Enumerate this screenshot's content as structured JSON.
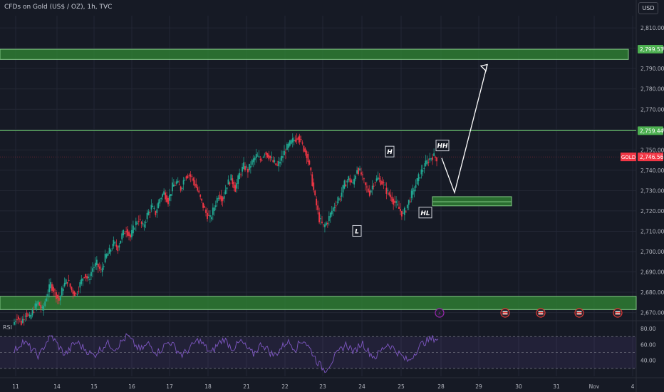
{
  "header": {
    "title": "CFDs on Gold (US$ / OZ), 1h, TVC",
    "currency": "USD"
  },
  "chart_data": {
    "type": "candlestick",
    "title": "CFDs on Gold (US$ / OZ), 1h, TVC",
    "y_axis": {
      "min": 2666,
      "max": 2816,
      "ticks": [
        "2,810.00",
        "2,800.00",
        "2,790.00",
        "2,780.00",
        "2,770.00",
        "2,760.00",
        "2,750.00",
        "2,740.00",
        "2,730.00",
        "2,720.00",
        "2,710.00",
        "2,700.00",
        "2,690.00",
        "2,680.00",
        "2,670.00"
      ],
      "tick_values": [
        2810,
        2800,
        2790,
        2780,
        2770,
        2760,
        2750,
        2740,
        2730,
        2720,
        2710,
        2700,
        2690,
        2680,
        2670
      ]
    },
    "x_axis": {
      "labels": [
        "11",
        "14",
        "15",
        "16",
        "17",
        "18",
        "21",
        "22",
        "23",
        "24",
        "25",
        "28",
        "29",
        "30",
        "31",
        "Nov",
        "4"
      ]
    },
    "price_labels": [
      {
        "text": "2,799.53",
        "value": 2799.53,
        "color": "#4caf50"
      },
      {
        "text": "2,759.44",
        "value": 2759.44,
        "color": "#4caf50"
      },
      {
        "text": "2,746.56",
        "value": 2746.56,
        "color": "#f23645",
        "symbol": "GOLD"
      }
    ],
    "zones": [
      {
        "name": "resistance-zone",
        "from": 2794.5,
        "to": 2799.5
      },
      {
        "name": "support-zone",
        "from": 2671.5,
        "to": 2678
      },
      {
        "name": "retest-box-upper",
        "from": 2727,
        "to": 2724.5
      },
      {
        "name": "retest-box-lower",
        "from": 2724.5,
        "to": 2722.5
      }
    ],
    "lines": [
      {
        "name": "resistance-line",
        "value": 2759.44
      },
      {
        "name": "current-price-line",
        "value": 2746.56
      }
    ],
    "annotations": [
      {
        "text": "H",
        "price": 2749
      },
      {
        "text": "L",
        "price": 2710
      },
      {
        "text": "HH",
        "price": 2752
      },
      {
        "text": "HL",
        "price": 2719
      }
    ],
    "projection": {
      "points": [
        [
          2746,
          "start"
        ],
        [
          2729,
          "pullback"
        ],
        [
          2792,
          "target"
        ]
      ]
    },
    "price_path": [
      2664,
      2668,
      2665,
      2670,
      2667,
      2672,
      2675,
      2671,
      2678,
      2684,
      2680,
      2676,
      2683,
      2686,
      2681,
      2679,
      2684,
      2689,
      2686,
      2692,
      2694,
      2690,
      2697,
      2700,
      2704,
      2702,
      2708,
      2711,
      2707,
      2713,
      2716,
      2712,
      2718,
      2722,
      2719,
      2726,
      2729,
      2725,
      2732,
      2734,
      2731,
      2737,
      2738,
      2735,
      2730,
      2724,
      2719,
      2716,
      2722,
      2728,
      2726,
      2733,
      2736,
      2731,
      2738,
      2742,
      2740,
      2744,
      2747,
      2745,
      2749,
      2747,
      2744,
      2742,
      2746,
      2750,
      2753,
      2755,
      2757,
      2752,
      2748,
      2738,
      2726,
      2716,
      2712,
      2715,
      2720,
      2724,
      2727,
      2733,
      2736,
      2733,
      2741,
      2738,
      2732,
      2729,
      2734,
      2736,
      2734,
      2730,
      2727,
      2724,
      2721,
      2718,
      2723,
      2728,
      2733,
      2738,
      2742,
      2745,
      2747,
      2746
    ],
    "rsi": {
      "label": "RSI",
      "ticks": [
        "80.00",
        "60.00",
        "40.00"
      ],
      "tick_values": [
        80,
        60,
        40
      ],
      "upper": 70,
      "lower": 30,
      "values": [
        52,
        58,
        64,
        60,
        55,
        50,
        45,
        57,
        66,
        70,
        62,
        55,
        48,
        52,
        60,
        63,
        58,
        54,
        49,
        46,
        52,
        56,
        62,
        59,
        55,
        60,
        66,
        71,
        64,
        58,
        53,
        57,
        61,
        55,
        50,
        54,
        60,
        64,
        58,
        52,
        47,
        51,
        56,
        62,
        66,
        60,
        54,
        49,
        57,
        63,
        67,
        61,
        55,
        59,
        64,
        58,
        52,
        48,
        55,
        61,
        56,
        50,
        46,
        52,
        58,
        64,
        60,
        55,
        62,
        66,
        58,
        50,
        40,
        33,
        28,
        34,
        42,
        48,
        55,
        60,
        56,
        50,
        58,
        62,
        54,
        48,
        44,
        50,
        56,
        61,
        57,
        52,
        47,
        42,
        39,
        46,
        54,
        60,
        64,
        66,
        68,
        67
      ]
    },
    "event_icons": [
      {
        "name": "lightning-icon",
        "glyph": "⚡",
        "color": "#9c27b0"
      },
      {
        "name": "us-flag-icon",
        "glyph": "",
        "color": "#e53935"
      },
      {
        "name": "us-flag-icon",
        "glyph": "",
        "color": "#e53935"
      },
      {
        "name": "us-flag-icon",
        "glyph": "",
        "color": "#e53935"
      },
      {
        "name": "us-flag-icon",
        "glyph": "",
        "color": "#e53935"
      }
    ]
  },
  "colors": {
    "bg": "#161a25",
    "up": "#22ab94",
    "down": "#f23645",
    "zone": "#2e7d32",
    "zone_border": "#81c784",
    "grid": "#232735",
    "rsi": "#7e57c2"
  }
}
